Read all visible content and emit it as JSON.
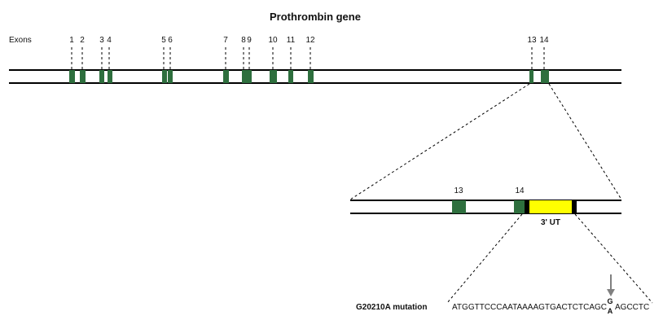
{
  "title": "Prothrombin gene",
  "exons_label": "Exons",
  "exon_labels": [
    "1",
    "2",
    "3",
    "4",
    "5",
    "6",
    "7",
    "8",
    "9",
    "10",
    "11",
    "12",
    "13",
    "14"
  ],
  "zoom_exon_labels": [
    "13",
    "14"
  ],
  "utr_label": "3' UT",
  "mutation_label": "G20210A mutation",
  "sequence_before": "ATGGTTCCCAATAAAAGTGACTCTCAGC",
  "sequence_after": "AGCCTC",
  "wild_type_nt": "G",
  "mutant_nt": "A",
  "colors": {
    "exon": "#2e6f3e",
    "utr": "#ffff00",
    "utr_border": "#000000",
    "arrow": "#808080"
  }
}
